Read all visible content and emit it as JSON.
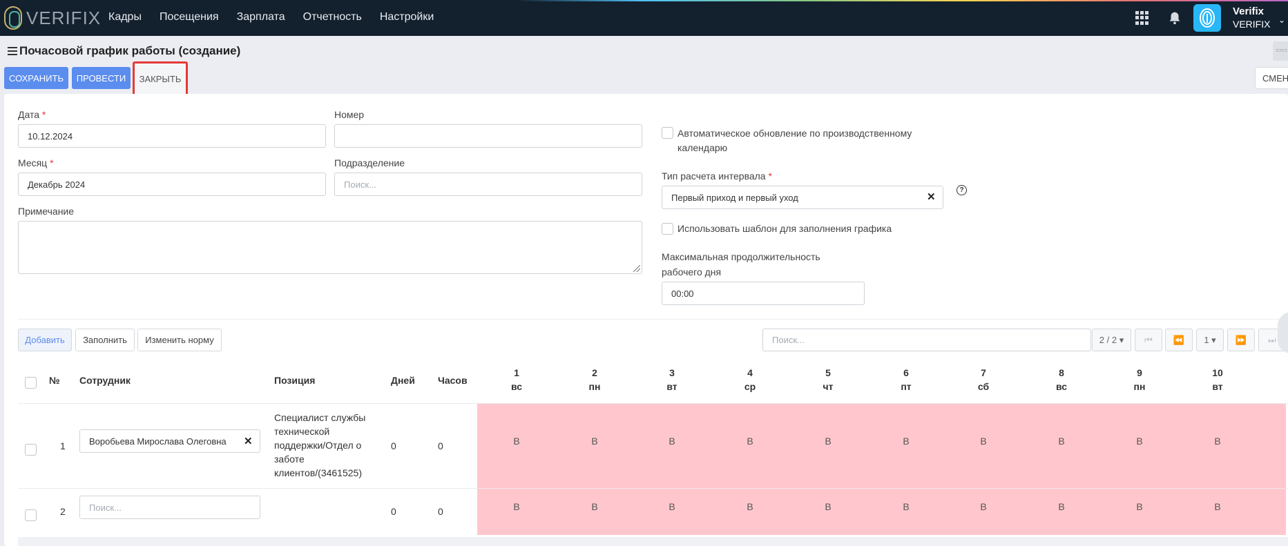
{
  "app": {
    "logo_text": "VERIFIX"
  },
  "nav": {
    "items": [
      "Кадры",
      "Посещения",
      "Зарплата",
      "Отчетность",
      "Настройки"
    ]
  },
  "user": {
    "name": "Verifix",
    "org": "VERIFIX"
  },
  "page": {
    "title": "Почасовой график работы (создание)"
  },
  "toolbar": {
    "save_label": "СОХРАНИТЬ",
    "post_label": "ПРОВЕСТИ",
    "close_label": "ЗАКРЫТЬ",
    "shifts_label": "СМЕНЫ"
  },
  "form": {
    "date_label": "Дата",
    "date_value": "10.12.2024",
    "number_label": "Номер",
    "number_value": "",
    "month_label": "Месяц",
    "month_value": "Декабрь 2024",
    "division_label": "Подразделение",
    "division_placeholder": "Поиск...",
    "note_label": "Примечание",
    "auto_update_label": "Автоматическое обновление по производственному календарю",
    "interval_type_label": "Тип расчета интервала",
    "interval_type_value": "Первый приход и первый уход",
    "use_template_label": "Использовать шаблон для заполнения графика",
    "max_duration_label_1": "Максимальная продолжительность",
    "max_duration_label_2": "рабочего дня",
    "max_duration_value": "00:00"
  },
  "grid_toolbar": {
    "add_label": "Добавить",
    "fill_label": "Заполнить",
    "change_norm_label": "Изменить норму",
    "search_placeholder": "Поиск...",
    "page_count": "2 / 2",
    "page_size": "1"
  },
  "table": {
    "columns": {
      "num": "№",
      "employee": "Сотрудник",
      "position": "Позиция",
      "days": "Дней",
      "hours": "Часов"
    },
    "days": [
      {
        "n": "1",
        "wd": "вс"
      },
      {
        "n": "2",
        "wd": "пн"
      },
      {
        "n": "3",
        "wd": "вт"
      },
      {
        "n": "4",
        "wd": "ср"
      },
      {
        "n": "5",
        "wd": "чт"
      },
      {
        "n": "6",
        "wd": "пт"
      },
      {
        "n": "7",
        "wd": "сб"
      },
      {
        "n": "8",
        "wd": "вс"
      },
      {
        "n": "9",
        "wd": "пн"
      },
      {
        "n": "10",
        "wd": "вт"
      }
    ],
    "rows": [
      {
        "num": "1",
        "employee": "Воробьева Мирослава Олеговна",
        "position": [
          "Специалист службы",
          "технической",
          "поддержки/Отдел о",
          "заботе",
          "клиентов/(3461525)"
        ],
        "days": "0",
        "hours": "0",
        "cells": [
          "В",
          "В",
          "В",
          "В",
          "В",
          "В",
          "В",
          "В",
          "В",
          "В"
        ]
      },
      {
        "num": "2",
        "employee_placeholder": "Поиск...",
        "days": "0",
        "hours": "0",
        "cells": [
          "В",
          "В",
          "В",
          "В",
          "В",
          "В",
          "В",
          "В",
          "В",
          "В"
        ]
      }
    ]
  },
  "colors": {
    "nav_bg": "#13202e",
    "primary": "#5b8def",
    "highlight_red": "#e53935",
    "weekend_pink": "#ffc7cd"
  }
}
